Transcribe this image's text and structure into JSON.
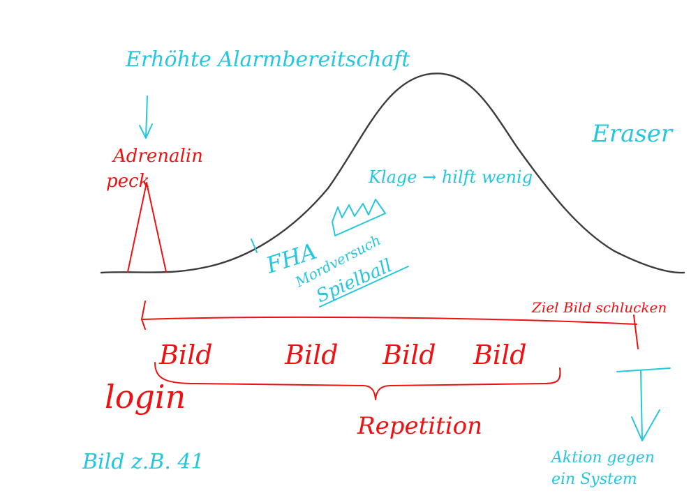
{
  "colors": {
    "cyan": "#25c6de",
    "red": "#ee1111",
    "curve": "#3b3b3b",
    "background": "#ffffff"
  },
  "labels": {
    "alarm": "Erhöhte Alarmbereitschaft",
    "eraser": "Eraser",
    "adrenalin_line1": "Adrenalin",
    "adrenalin_line2": "peck",
    "klage": "Klage → hilft wenig",
    "fha": "FHA",
    "mordversuch": "Mordversuch",
    "spielball": "Spielball",
    "ziel": "Ziel Bild schlucken",
    "bild_items": [
      "Bild",
      "Bild",
      "Bild",
      "Bild"
    ],
    "login": "login",
    "repetition": "Repetition",
    "bild_example": "Bild z.B. 41",
    "aktion_line1": "Aktion gegen",
    "aktion_line2": "ein System"
  }
}
